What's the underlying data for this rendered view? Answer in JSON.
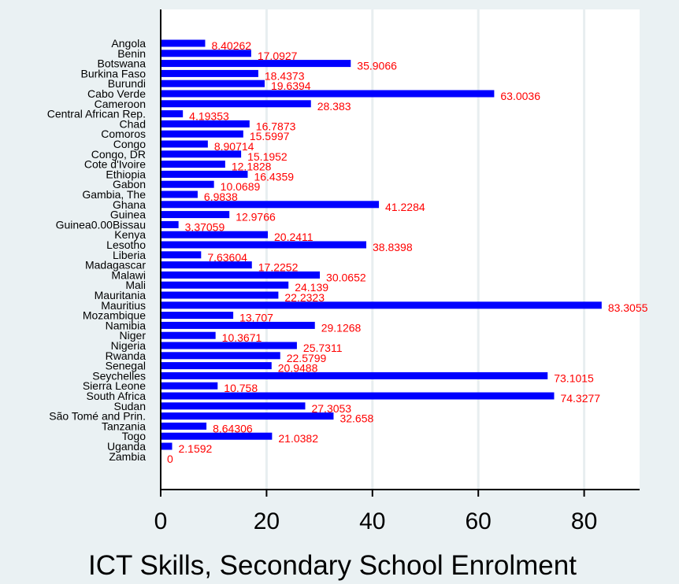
{
  "chart_data": {
    "type": "bar",
    "orientation": "horizontal",
    "xlabel": "ICT Skills, Secondary School Enrolment",
    "xlim": [
      0,
      90
    ],
    "xticks": [
      0,
      20,
      40,
      60,
      80
    ],
    "grid": true,
    "bar_color": "#0000ff",
    "label_color": "#ff0000",
    "categories": [
      "Angola",
      "Benin",
      "Botswana",
      "Burkina Faso",
      "Burundi",
      "Cabo Verde",
      "Cameroon",
      "Central African Rep.",
      "Chad",
      "Comoros",
      "Congo",
      "Congo, DR",
      "Cote d'Ivoire",
      "Ethiopia",
      "Gabon",
      "Gambia, The",
      "Ghana",
      "Guinea",
      "Guinea0.00Bissau",
      "Kenya",
      "Lesotho",
      "Liberia",
      "Madagascar",
      "Malawi",
      "Mali",
      "Mauritania",
      "Mauritius",
      "Mozambique",
      "Namibia",
      "Niger",
      "Nigeria",
      "Rwanda",
      "Senegal",
      "Seychelles",
      "Sierra Leone",
      "South Africa",
      "Sudan",
      "São Tomé and Prin.",
      "Tanzania",
      "Togo",
      "Uganda",
      "Zambia"
    ],
    "values": [
      8.40262,
      17.0927,
      35.9066,
      18.4373,
      19.6394,
      63.0036,
      28.383,
      4.19353,
      16.7873,
      15.5997,
      8.90714,
      15.1952,
      12.1828,
      16.4359,
      10.0689,
      6.9838,
      41.2284,
      12.9766,
      3.37059,
      20.2411,
      38.8398,
      7.63604,
      17.2252,
      30.0652,
      24.139,
      22.2323,
      83.3055,
      13.707,
      29.1268,
      10.3671,
      25.7311,
      22.5799,
      20.9488,
      73.1015,
      10.758,
      74.3277,
      27.3053,
      32.658,
      8.64306,
      21.0382,
      2.1592,
      0
    ],
    "value_labels": [
      "8.40262",
      "17.0927",
      "35.9066",
      "18.4373",
      "19.6394",
      "63.0036",
      "28.383",
      "4.19353",
      "16.7873",
      "15.5997",
      "8.90714",
      "15.1952",
      "12.1828",
      "16.4359",
      "10.0689",
      "6.9838",
      "41.2284",
      "12.9766",
      "3.37059",
      "20.2411",
      "38.8398",
      "7.63604",
      "17.2252",
      "30.0652",
      "24.139",
      "22.2323",
      "83.3055",
      "13.707",
      "29.1268",
      "10.3671",
      "25.7311",
      "22.5799",
      "20.9488",
      "73.1015",
      "10.758",
      "74.3277",
      "27.3053",
      "32.658",
      "8.64306",
      "21.0382",
      "2.1592",
      "0"
    ]
  }
}
